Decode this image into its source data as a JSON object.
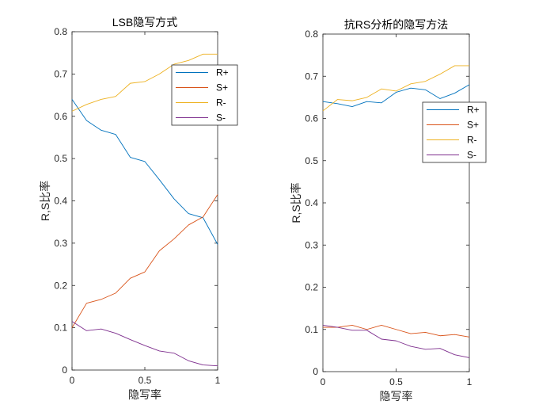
{
  "chart_data": [
    {
      "type": "line",
      "title": "LSB隐写方式",
      "xlabel": "隐写率",
      "ylabel": "R,S比率",
      "xlim": [
        0,
        1
      ],
      "ylim": [
        0,
        0.8
      ],
      "x_ticks": [
        "0",
        "0.5",
        "1"
      ],
      "y_ticks": [
        "0",
        "0.1",
        "0.2",
        "0.3",
        "0.4",
        "0.5",
        "0.6",
        "0.7",
        "0.8"
      ],
      "legend_position": "top-right",
      "grid": false,
      "x": [
        0,
        0.1,
        0.2,
        0.3,
        0.4,
        0.5,
        0.6,
        0.7,
        0.8,
        0.9,
        1.0
      ],
      "series": [
        {
          "name": "R+",
          "color": "#0072BD",
          "values": [
            0.64,
            0.59,
            0.567,
            0.557,
            0.503,
            0.493,
            0.45,
            0.405,
            0.37,
            0.36,
            0.297
          ]
        },
        {
          "name": "S+",
          "color": "#D95319",
          "values": [
            0.1,
            0.158,
            0.167,
            0.182,
            0.217,
            0.232,
            0.282,
            0.31,
            0.343,
            0.362,
            0.415
          ]
        },
        {
          "name": "R-",
          "color": "#EDB120",
          "values": [
            0.612,
            0.628,
            0.64,
            0.647,
            0.678,
            0.682,
            0.7,
            0.723,
            0.732,
            0.747,
            0.747
          ]
        },
        {
          "name": "S-",
          "color": "#7E2F8E",
          "values": [
            0.115,
            0.093,
            0.097,
            0.087,
            0.072,
            0.058,
            0.045,
            0.04,
            0.022,
            0.012,
            0.01
          ]
        }
      ]
    },
    {
      "type": "line",
      "title": "抗RS分析的隐写方法",
      "xlabel": "隐写率",
      "ylabel": "R,S比率",
      "xlim": [
        0,
        1
      ],
      "ylim": [
        0,
        0.8
      ],
      "x_ticks": [
        "0",
        "0.5",
        "1"
      ],
      "y_ticks": [
        "0",
        "0.1",
        "0.2",
        "0.3",
        "0.4",
        "0.5",
        "0.6",
        "0.7",
        "0.8"
      ],
      "legend_position": "right",
      "grid": false,
      "x": [
        0,
        0.1,
        0.2,
        0.3,
        0.4,
        0.5,
        0.6,
        0.7,
        0.8,
        0.9,
        1.0
      ],
      "series": [
        {
          "name": "R+",
          "color": "#0072BD",
          "values": [
            0.64,
            0.635,
            0.628,
            0.64,
            0.637,
            0.662,
            0.672,
            0.668,
            0.647,
            0.66,
            0.68
          ]
        },
        {
          "name": "S+",
          "color": "#D95319",
          "values": [
            0.105,
            0.105,
            0.11,
            0.1,
            0.11,
            0.1,
            0.09,
            0.093,
            0.085,
            0.088,
            0.082
          ]
        },
        {
          "name": "R-",
          "color": "#EDB120",
          "values": [
            0.618,
            0.645,
            0.642,
            0.65,
            0.67,
            0.665,
            0.682,
            0.688,
            0.705,
            0.725,
            0.725
          ]
        },
        {
          "name": "S-",
          "color": "#7E2F8E",
          "values": [
            0.11,
            0.105,
            0.098,
            0.098,
            0.077,
            0.073,
            0.06,
            0.053,
            0.055,
            0.04,
            0.033
          ]
        }
      ]
    }
  ]
}
